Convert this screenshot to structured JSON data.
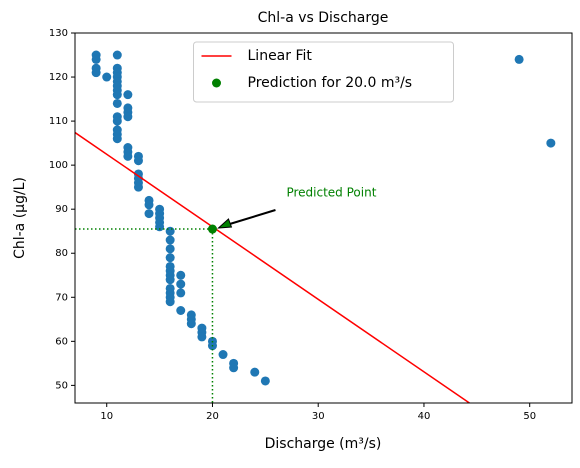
{
  "chart_data": {
    "type": "scatter",
    "title": "Chl-a vs Discharge",
    "xlabel": "Discharge (m³/s)",
    "ylabel": "Chl-a (μg/L)",
    "xlim": [
      7,
      54
    ],
    "ylim": [
      46,
      130
    ],
    "xticks": [
      10,
      20,
      30,
      40,
      50
    ],
    "yticks": [
      50,
      60,
      70,
      80,
      90,
      100,
      110,
      120,
      130
    ],
    "legend": "upper center",
    "series": [
      {
        "type": "scatter",
        "color": "#1f77b4",
        "x": [
          9,
          9,
          9,
          9,
          10,
          11,
          11,
          11,
          11,
          11,
          11,
          11,
          11,
          11,
          11,
          11,
          11,
          11,
          11,
          12,
          12,
          12,
          12,
          12,
          12,
          12,
          13,
          13,
          13,
          13,
          13,
          13,
          14,
          14,
          14,
          15,
          15,
          15,
          15,
          15,
          16,
          16,
          16,
          16,
          16,
          16,
          16,
          16,
          16,
          16,
          16,
          16,
          17,
          17,
          17,
          17,
          18,
          18,
          18,
          19,
          19,
          19,
          20,
          20,
          21,
          22,
          22,
          24,
          25,
          49,
          52
        ],
        "y": [
          125,
          124,
          122,
          121,
          120,
          125,
          122,
          121,
          120,
          119,
          118,
          117,
          116,
          114,
          111,
          110,
          108,
          107,
          106,
          116,
          113,
          112,
          111,
          104,
          103,
          102,
          102,
          101,
          98,
          97,
          96,
          95,
          92,
          91,
          89,
          90,
          89,
          88,
          87,
          86,
          85,
          83,
          81,
          79,
          77,
          76,
          75,
          74,
          72,
          71,
          70,
          69,
          75,
          73,
          71,
          67,
          66,
          65,
          64,
          63,
          62,
          61,
          60,
          59,
          57,
          55,
          54,
          53,
          51,
          124,
          105
        ]
      },
      {
        "type": "line",
        "name": "Linear Fit",
        "color": "#ff0000",
        "x": [
          7,
          44.3
        ],
        "y": [
          107.4,
          46
        ]
      },
      {
        "type": "point",
        "name": "Prediction for 20.0 m³/s",
        "color": "#008000",
        "x": [
          20
        ],
        "y": [
          85.5
        ]
      }
    ],
    "annotation": {
      "text": "Predicted Point",
      "color": "#008000"
    }
  }
}
